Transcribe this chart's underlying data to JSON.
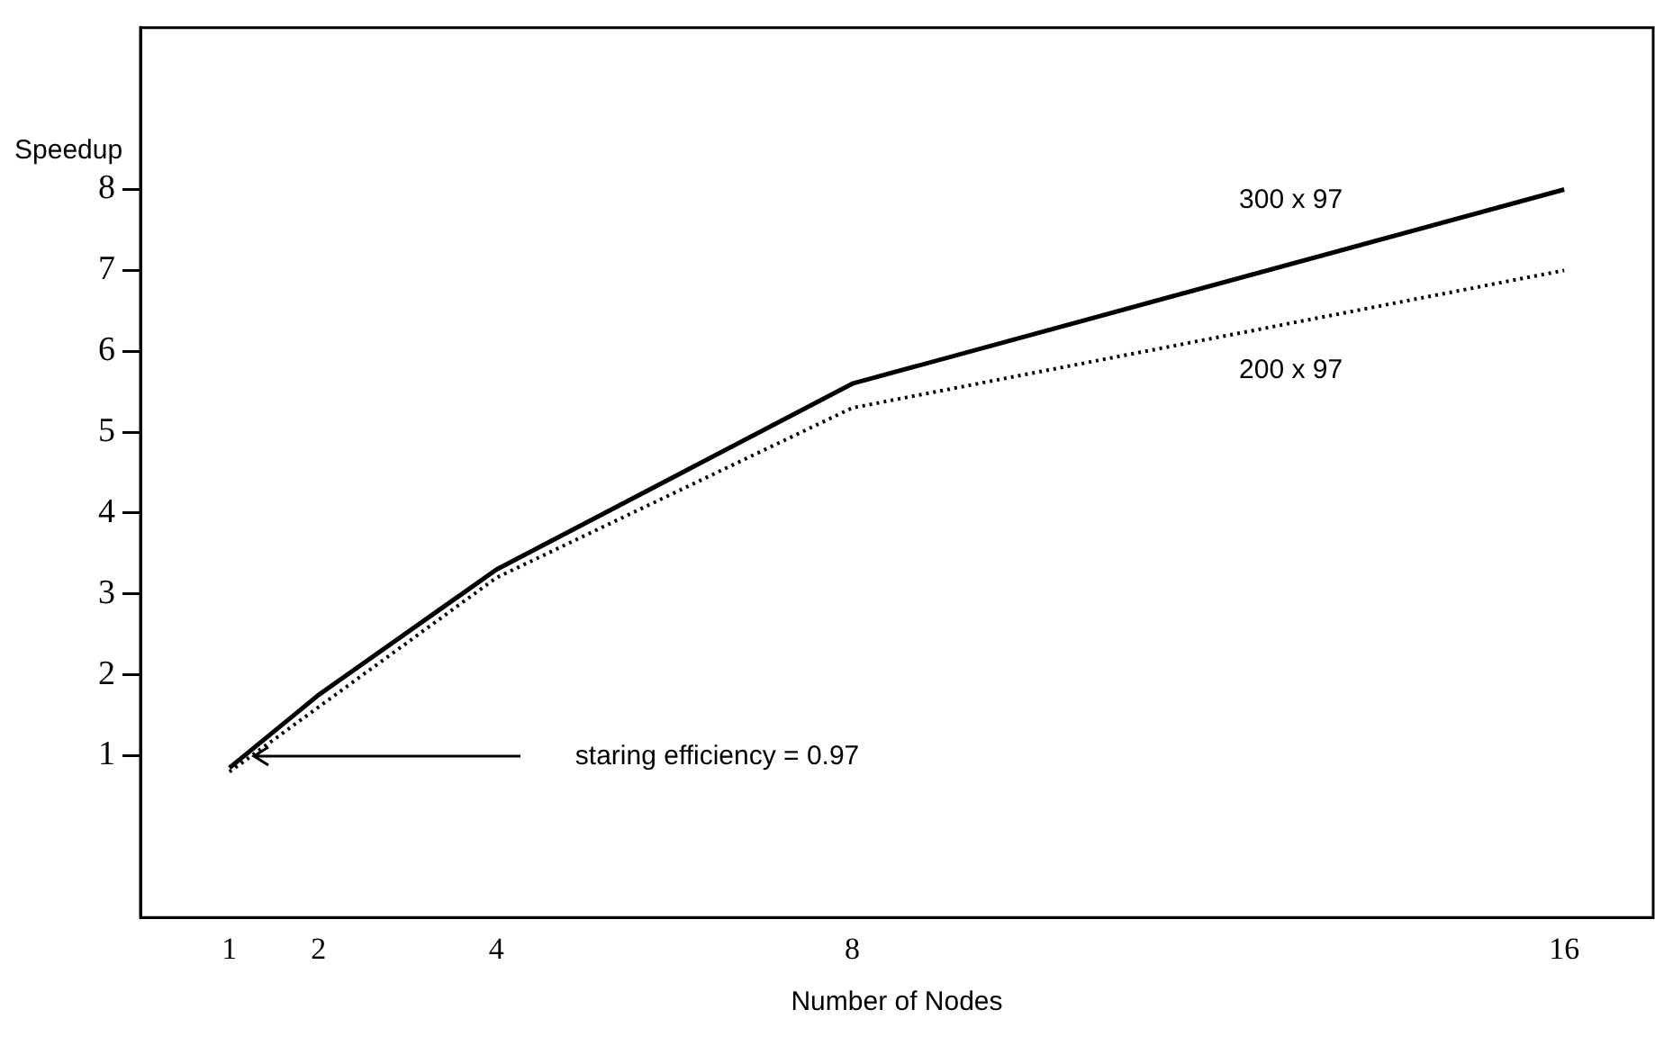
{
  "chart_data": {
    "type": "line",
    "xlabel": "Number of Nodes",
    "ylabel": "Speedup",
    "x": [
      1,
      2,
      4,
      8,
      16
    ],
    "series": [
      {
        "name": "300 x 97",
        "color": "#000000",
        "line_style": "solid",
        "values": [
          0.85,
          1.75,
          3.3,
          5.6,
          8.0
        ]
      },
      {
        "name": "200 x 97",
        "color": "#000000",
        "line_style": "dotted",
        "values": [
          0.8,
          1.6,
          3.2,
          5.3,
          7.0
        ]
      }
    ],
    "xlim": [
      0,
      17
    ],
    "xticks": [
      1,
      2,
      4,
      8,
      16
    ],
    "ylim": [
      -1,
      10
    ],
    "yticks": [
      1,
      2,
      3,
      4,
      5,
      6,
      7,
      8
    ],
    "annotations": [
      "staring efficiency = 0.97"
    ],
    "grid": false,
    "legend": false,
    "marker": "none"
  }
}
